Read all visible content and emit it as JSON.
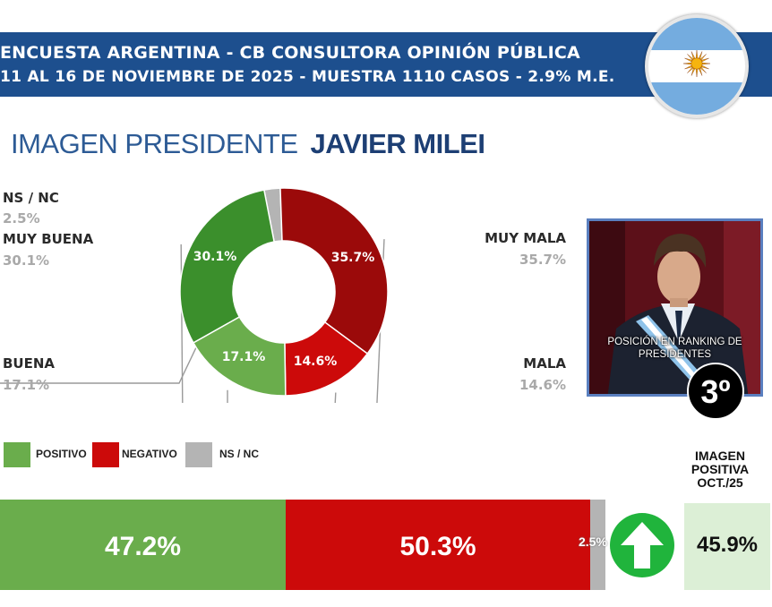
{
  "header": {
    "line1": "ENCUESTA ARGENTINA - CB CONSULTORA OPINIÓN PÚBLICA",
    "line2": "11 AL 16 DE NOVIEMBRE DE 2025 - MUESTRA 1110 CASOS - 2.9% M.E."
  },
  "title": {
    "prefix": "IMAGEN PRESIDENTE",
    "name": "JAVIER MILEI"
  },
  "colors": {
    "muy_buena": "#3b8f2c",
    "buena": "#6aad4c",
    "mala": "#cc0a0a",
    "muy_mala": "#9b0a0a",
    "nsnc": "#b4b4b4",
    "header": "#1d4f8e"
  },
  "chart_data": [
    {
      "type": "pie",
      "title": "IMAGEN PRESIDENTE JAVIER MILEI",
      "slices": [
        {
          "key": "nsnc",
          "label": "NS / NC",
          "value": 2.5,
          "display": "2.5%"
        },
        {
          "key": "muy_mala",
          "label": "MUY MALA",
          "value": 35.7,
          "display": "35.7%"
        },
        {
          "key": "mala",
          "label": "MALA",
          "value": 14.6,
          "display": "14.6%"
        },
        {
          "key": "buena",
          "label": "BUENA",
          "value": 17.1,
          "display": "17.1%"
        },
        {
          "key": "muy_buena",
          "label": "MUY BUENA",
          "value": 30.1,
          "display": "30.1%"
        }
      ]
    },
    {
      "type": "bar",
      "orientation": "horizontal-stacked",
      "legend": [
        "POSITIVO",
        "NEGATIVO",
        "NS / NC"
      ],
      "segments": [
        {
          "key": "positivo",
          "label": "POSITIVO",
          "value": 47.2,
          "display": "47.2%"
        },
        {
          "key": "negativo",
          "label": "NEGATIVO",
          "value": 50.3,
          "display": "50.3%"
        },
        {
          "key": "nsnc",
          "label": "NS / NC",
          "value": 2.5,
          "display": "2.5%"
        }
      ]
    }
  ],
  "ranking": {
    "label": "POSICIÓN EN RANKING DE PRESIDENTES",
    "position": "3º"
  },
  "comparison": {
    "title": "IMAGEN POSITIVA OCT./25",
    "value": "45.9%",
    "trend": "up-arrow-icon"
  }
}
